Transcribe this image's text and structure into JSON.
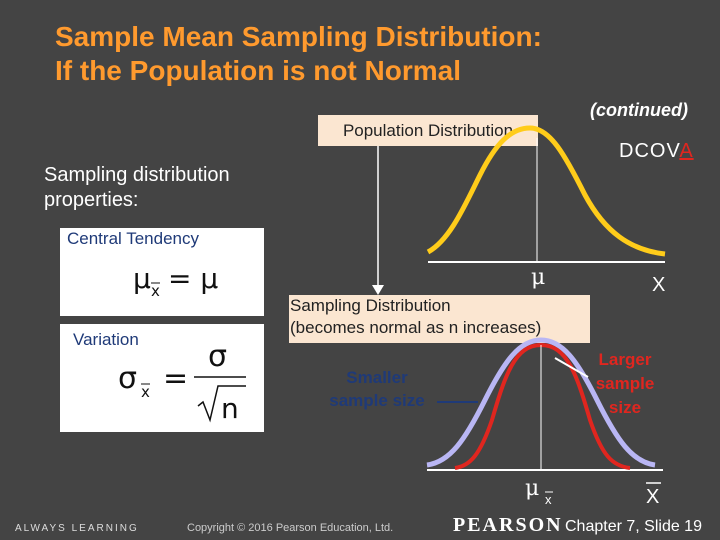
{
  "slide": {
    "title_line1": "Sample Mean Sampling Distribution:",
    "title_line2": "If the Population is not Normal",
    "continued": "(continued)",
    "dcova_prefix": "DCOV",
    "dcova_highlight": "A",
    "population_box": "Population Distribution",
    "properties_line1": "Sampling distribution",
    "properties_line2": "properties:",
    "central_tendency_label": "Central Tendency",
    "variation_label": "Variation",
    "sampling_box_line1": "Sampling Distribution",
    "sampling_box_line2": "(becomes normal as n increases)",
    "smaller_line1": "Smaller",
    "smaller_line2": "sample size",
    "larger_line1": "Larger",
    "larger_line2": "sample",
    "larger_line3": "size",
    "mu_label": "μ",
    "x_label": "X",
    "mu_xbar_label": "μ",
    "xbar_sub": "x",
    "xbar_label": "X"
  },
  "formulas": {
    "central_mu": "μ",
    "central_sub": "x",
    "central_eq": "= μ",
    "var_sigma_left": "σ",
    "var_sub": "x",
    "var_eq": "=",
    "var_sigma_num": "σ",
    "var_n": "n"
  },
  "footer": {
    "always_learning": "ALWAYS LEARNING",
    "copyright": "Copyright © 2016 Pearson Education, Ltd.",
    "pearson": "PEARSON",
    "chapter": "Chapter 7, Slide 19"
  },
  "colors": {
    "background": "#444444",
    "title": "#ff9a2e",
    "population_curve": "#ffcc1a",
    "small_sample_curve": "#b9b6f4",
    "large_sample_curve": "#e0261f",
    "box_fill": "#fbe6d1",
    "label_blue": "#1f3a78"
  }
}
